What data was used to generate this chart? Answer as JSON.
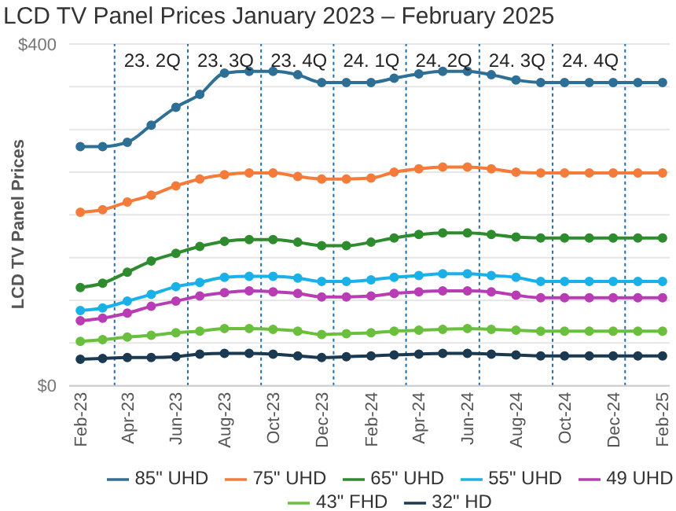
{
  "chart_data": {
    "type": "line",
    "title": "LCD TV Panel Prices January 2023 – February 2025",
    "ylabel": "LCD TV Panel Prices",
    "x": [
      "2023-02",
      "2023-03",
      "2023-04",
      "2023-05",
      "2023-06",
      "2023-07",
      "2023-08",
      "2023-09",
      "2023-10",
      "2023-11",
      "2023-12",
      "2024-01",
      "2024-02",
      "2024-03",
      "2024-04",
      "2024-05",
      "2024-06",
      "2024-07",
      "2024-08",
      "2024-09",
      "2024-10",
      "2024-11",
      "2024-12",
      "2025-01",
      "2025-02"
    ],
    "xlim": [
      "2023-01-18",
      "2025-02-10"
    ],
    "xticks": [
      {
        "value": "2023-02",
        "label": "Feb-23"
      },
      {
        "value": "2023-04",
        "label": "Apr-23"
      },
      {
        "value": "2023-06",
        "label": "Jun-23"
      },
      {
        "value": "2023-08",
        "label": "Aug-23"
      },
      {
        "value": "2023-10",
        "label": "Oct-23"
      },
      {
        "value": "2023-12",
        "label": "Dec-23"
      },
      {
        "value": "2024-02",
        "label": "Feb-24"
      },
      {
        "value": "2024-04",
        "label": "Apr-24"
      },
      {
        "value": "2024-06",
        "label": "Jun-24"
      },
      {
        "value": "2024-08",
        "label": "Aug-24"
      },
      {
        "value": "2024-10",
        "label": "Oct-24"
      },
      {
        "value": "2024-12",
        "label": "Dec-24"
      },
      {
        "value": "2025-02",
        "label": "Feb-25"
      }
    ],
    "ylim": [
      0,
      400
    ],
    "yticks": [
      {
        "value": 0,
        "label": "$0"
      },
      {
        "value": 50,
        "label": null
      },
      {
        "value": 100,
        "label": null
      },
      {
        "value": 150,
        "label": null
      },
      {
        "value": 200,
        "label": null
      },
      {
        "value": 250,
        "label": null
      },
      {
        "value": 300,
        "label": null
      },
      {
        "value": 350,
        "label": null
      },
      {
        "value": 400,
        "label": "$400"
      }
    ],
    "series": [
      {
        "name": "85\" UHD",
        "color": "#2e6f95",
        "values": [
          280,
          280,
          285,
          305,
          326,
          341,
          366,
          368,
          368,
          364,
          355,
          355,
          355,
          360,
          365,
          368,
          368,
          364,
          358,
          355,
          355,
          355,
          355,
          355,
          355
        ]
      },
      {
        "name": "75\" UHD",
        "color": "#f47b3a",
        "values": [
          203,
          206,
          215,
          223,
          234,
          242,
          247,
          249,
          249,
          245,
          242,
          242,
          243,
          250,
          254,
          256,
          256,
          254,
          250,
          249,
          249,
          249,
          249,
          249,
          249
        ]
      },
      {
        "name": "65\" UHD",
        "color": "#2e8b2e",
        "values": [
          115,
          120,
          133,
          146,
          155,
          163,
          169,
          171,
          171,
          168,
          164,
          164,
          168,
          173,
          177,
          179,
          179,
          177,
          174,
          173,
          173,
          173,
          173,
          173,
          173
        ]
      },
      {
        "name": "55\" UHD",
        "color": "#1ab0e8",
        "values": [
          88,
          91,
          99,
          107,
          116,
          121,
          127,
          128,
          128,
          126,
          122,
          122,
          124,
          127,
          129,
          131,
          131,
          129,
          127,
          122,
          122,
          122,
          122,
          122,
          122
        ]
      },
      {
        "name": "49 UHD",
        "color": "#b83db5",
        "values": [
          76,
          79,
          85,
          93,
          99,
          105,
          109,
          111,
          110,
          108,
          104,
          104,
          105,
          108,
          110,
          111,
          111,
          110,
          106,
          103,
          103,
          103,
          103,
          103,
          103
        ]
      },
      {
        "name": "43\" FHD",
        "color": "#6abf3c",
        "values": [
          52,
          54,
          57,
          59,
          62,
          64,
          67,
          67,
          66,
          64,
          60,
          61,
          62,
          64,
          65,
          66,
          67,
          66,
          65,
          64,
          64,
          64,
          64,
          64,
          64
        ]
      },
      {
        "name": "32\" HD",
        "color": "#1b3a52",
        "values": [
          31,
          32,
          33,
          33,
          34,
          37,
          38,
          38,
          37,
          35,
          33,
          34,
          35,
          36,
          37,
          38,
          38,
          37,
          36,
          35,
          35,
          35,
          35,
          35,
          35
        ]
      }
    ],
    "ref_lines": [
      {
        "axis": "x",
        "value": "2023-03-16",
        "label": "23. 2Q",
        "color": "#1f6fa8",
        "line_style": "dotted"
      },
      {
        "axis": "x",
        "value": "2023-06-16",
        "label": "23. 3Q",
        "color": "#1f6fa8",
        "line_style": "dotted"
      },
      {
        "axis": "x",
        "value": "2023-09-16",
        "label": "23. 4Q",
        "color": "#1f6fa8",
        "line_style": "dotted"
      },
      {
        "axis": "x",
        "value": "2023-12-16",
        "label": "24. 1Q",
        "color": "#1f6fa8",
        "line_style": "dotted"
      },
      {
        "axis": "x",
        "value": "2024-03-16",
        "label": "24. 2Q",
        "color": "#1f6fa8",
        "line_style": "dotted"
      },
      {
        "axis": "x",
        "value": "2024-06-16",
        "label": "24. 3Q",
        "color": "#1f6fa8",
        "line_style": "dotted"
      },
      {
        "axis": "x",
        "value": "2024-09-16",
        "label": "24. 4Q",
        "color": "#1f6fa8",
        "line_style": "dotted"
      },
      {
        "axis": "x",
        "value": "2024-12-16",
        "color": "#1f6fa8",
        "line_style": "dotted"
      }
    ],
    "grid": "y",
    "legend": "bottom",
    "marker": "circle",
    "line_style": "solid"
  }
}
